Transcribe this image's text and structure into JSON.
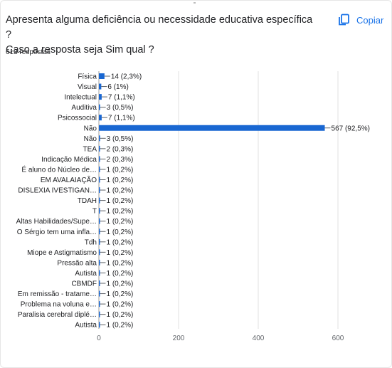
{
  "question": {
    "title_line1": "Apresenta alguma deficiência ou necessidade educativa específica ?",
    "title_line2": "Caso a resposta seja Sim qual ?",
    "response_count": "613 respostas"
  },
  "copy_button": {
    "label": "Copiar",
    "icon": "copy-icon"
  },
  "colors": {
    "bar": "#1967d2",
    "accent": "#1a73e8",
    "axis": "#5f6368",
    "grid": "#e0e0e0"
  },
  "chart_data": {
    "type": "bar",
    "orientation": "horizontal",
    "xlim": [
      0,
      600
    ],
    "xticks": [
      "0",
      "200",
      "400",
      "600"
    ],
    "grid": true,
    "bars": [
      {
        "category": "Física",
        "value": 14,
        "label": "14 (2,3%)"
      },
      {
        "category": "Visual",
        "value": 6,
        "label": "6 (1%)"
      },
      {
        "category": "Intelectual",
        "value": 7,
        "label": "7 (1,1%)"
      },
      {
        "category": "Auditiva",
        "value": 3,
        "label": "3 (0,5%)"
      },
      {
        "category": "Psicossocial",
        "value": 7,
        "label": "7 (1,1%)"
      },
      {
        "category": "Não",
        "value": 567,
        "label": "567 (92,5%)"
      },
      {
        "category": "Não",
        "value": 3,
        "label": "3 (0,5%)"
      },
      {
        "category": "TEA",
        "value": 2,
        "label": "2 (0,3%)"
      },
      {
        "category": "Indicação Médica",
        "value": 2,
        "label": "2 (0,3%)"
      },
      {
        "category": "É aluno do Núcleo de…",
        "value": 1,
        "label": "1 (0,2%)"
      },
      {
        "category": "EM AVALAIAÇÃO",
        "value": 1,
        "label": "1 (0,2%)"
      },
      {
        "category": "DISLEXIA IVESTIGAN…",
        "value": 1,
        "label": "1 (0,2%)"
      },
      {
        "category": "TDAH",
        "value": 1,
        "label": "1 (0,2%)"
      },
      {
        "category": "T",
        "value": 1,
        "label": "1 (0,2%)"
      },
      {
        "category": "Altas Habilidades/Supe…",
        "value": 1,
        "label": "1 (0,2%)"
      },
      {
        "category": "O Sérgio tem uma infla…",
        "value": 1,
        "label": "1 (0,2%)"
      },
      {
        "category": "Tdh",
        "value": 1,
        "label": "1 (0,2%)"
      },
      {
        "category": "Miope e Astigmatismo",
        "value": 1,
        "label": "1 (0,2%)"
      },
      {
        "category": "Pressão alta",
        "value": 1,
        "label": "1 (0,2%)"
      },
      {
        "category": "Autista",
        "value": 1,
        "label": "1 (0,2%)"
      },
      {
        "category": "CBMDF",
        "value": 1,
        "label": "1 (0,2%)"
      },
      {
        "category": "Em remissão - tratame…",
        "value": 1,
        "label": "1 (0,2%)"
      },
      {
        "category": "Problema na voluna e…",
        "value": 1,
        "label": "1 (0,2%)"
      },
      {
        "category": "Paralisia cerebral diplé…",
        "value": 1,
        "label": "1 (0,2%)"
      },
      {
        "category": "Autista",
        "value": 1,
        "label": "1 (0,2%)"
      }
    ]
  }
}
